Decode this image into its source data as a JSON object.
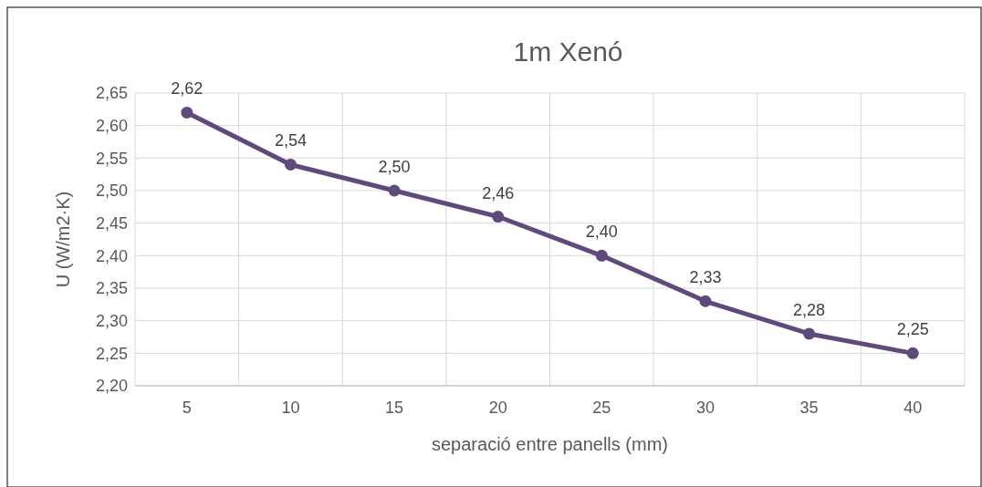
{
  "chart_data": {
    "type": "line",
    "title": "1m Xenó",
    "xlabel": "separació entre panells (mm)",
    "ylabel": "U (W/m2·K)",
    "categories": [
      "5",
      "10",
      "15",
      "20",
      "25",
      "30",
      "35",
      "40"
    ],
    "series": [
      {
        "color": "#604a7b",
        "values": [
          2.62,
          2.54,
          2.5,
          2.46,
          2.4,
          2.33,
          2.28,
          2.25
        ],
        "value_labels": [
          "2,62",
          "2,54",
          "2,50",
          "2,46",
          "2,40",
          "2,33",
          "2,28",
          "2,25"
        ]
      }
    ],
    "ylim": [
      2.2,
      2.65
    ],
    "yticks": [
      {
        "value": 2.2,
        "label": "2,20"
      },
      {
        "value": 2.25,
        "label": "2,25"
      },
      {
        "value": 2.3,
        "label": "2,30"
      },
      {
        "value": 2.35,
        "label": "2,35"
      },
      {
        "value": 2.4,
        "label": "2,40"
      },
      {
        "value": 2.45,
        "label": "2,45"
      },
      {
        "value": 2.5,
        "label": "2,50"
      },
      {
        "value": 2.55,
        "label": "2,55"
      },
      {
        "value": 2.6,
        "label": "2,60"
      },
      {
        "value": 2.65,
        "label": "2,65"
      }
    ],
    "grid": true,
    "marker": "circle",
    "line_style": "solid"
  }
}
